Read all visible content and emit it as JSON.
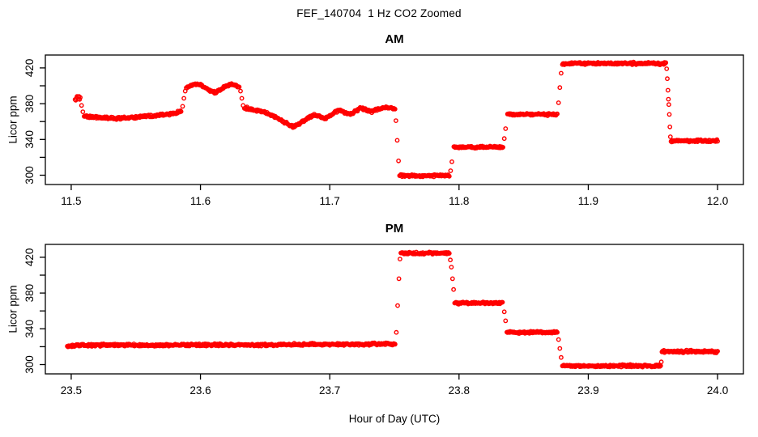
{
  "figure": {
    "title": "FEF_140704  1 Hz CO2 Zoomed",
    "xlabel": "Hour of Day (UTC)",
    "point_color": "#ff0000",
    "axis_color": "#000000",
    "background": "#ffffff"
  },
  "chart_data": [
    {
      "type": "scatter",
      "panel": "AM",
      "title": "AM",
      "ylabel": "Licor ppm",
      "marker": "open-circle",
      "grid": false,
      "legend": null,
      "xlim": [
        11.48,
        12.02
      ],
      "ylim": [
        289.6,
        434.4
      ],
      "xticks": [
        11.5,
        11.6,
        11.7,
        11.8,
        11.9,
        12.0
      ],
      "xtick_labels": [
        "11.5",
        "11.6",
        "11.7",
        "11.8",
        "11.9",
        "12.0"
      ],
      "yticks": [
        300,
        320,
        340,
        360,
        380,
        400,
        420
      ],
      "ytick_labels": [
        "300",
        "",
        "340",
        "",
        "380",
        "",
        "420"
      ],
      "sample_dt_hours": 0.0005,
      "segments": [
        {
          "kind": "flat",
          "t": [
            11.503,
            11.507
          ],
          "v": 386,
          "noise": 2.2
        },
        {
          "kind": "singles",
          "points": [
            [
              11.508,
              378
            ],
            [
              11.509,
              371
            ]
          ]
        },
        {
          "kind": "anchors",
          "noise": 1.2,
          "points": [
            [
              11.51,
              366
            ],
            [
              11.518,
              365
            ],
            [
              11.526,
              364
            ],
            [
              11.534,
              363.5
            ],
            [
              11.545,
              364
            ],
            [
              11.556,
              366
            ],
            [
              11.565,
              366.5
            ],
            [
              11.574,
              368
            ],
            [
              11.582,
              370
            ],
            [
              11.585,
              371.5
            ]
          ]
        },
        {
          "kind": "singles",
          "points": [
            [
              11.5862,
              377
            ],
            [
              11.5872,
              386
            ],
            [
              11.5882,
              394
            ]
          ]
        },
        {
          "kind": "anchors",
          "noise": 1.1,
          "points": [
            [
              11.589,
              397
            ],
            [
              11.592,
              400
            ],
            [
              11.596,
              402
            ],
            [
              11.6,
              401
            ],
            [
              11.603,
              398
            ],
            [
              11.607,
              395
            ],
            [
              11.611,
              392.5
            ],
            [
              11.615,
              395
            ],
            [
              11.619,
              399
            ],
            [
              11.623,
              401.5
            ],
            [
              11.627,
              401
            ],
            [
              11.63,
              398
            ]
          ]
        },
        {
          "kind": "singles",
          "points": [
            [
              11.631,
              394
            ],
            [
              11.632,
              386
            ],
            [
              11.633,
              378
            ]
          ]
        },
        {
          "kind": "anchors",
          "noise": 1.2,
          "points": [
            [
              11.634,
              375
            ],
            [
              11.64,
              373.5
            ],
            [
              11.646,
              372
            ],
            [
              11.652,
              369
            ],
            [
              11.658,
              365
            ],
            [
              11.663,
              361
            ],
            [
              11.668,
              357
            ],
            [
              11.6715,
              354
            ],
            [
              11.675,
              356
            ],
            [
              11.679,
              360
            ],
            [
              11.683,
              364
            ],
            [
              11.688,
              367
            ],
            [
              11.692,
              366
            ],
            [
              11.696,
              363
            ],
            [
              11.7,
              366
            ],
            [
              11.704,
              371
            ],
            [
              11.708,
              373
            ],
            [
              11.712,
              370
            ],
            [
              11.716,
              368
            ],
            [
              11.72,
              372
            ],
            [
              11.724,
              375
            ],
            [
              11.728,
              373
            ],
            [
              11.732,
              371
            ],
            [
              11.736,
              373
            ],
            [
              11.74,
              375
            ],
            [
              11.744,
              376
            ],
            [
              11.748,
              375
            ],
            [
              11.7505,
              374
            ]
          ]
        },
        {
          "kind": "singles",
          "points": [
            [
              11.7512,
              361
            ],
            [
              11.7522,
              339
            ],
            [
              11.7532,
              316
            ]
          ]
        },
        {
          "kind": "flat",
          "t": [
            11.754,
            11.7925
          ],
          "v": 299.5,
          "noise": 1.0
        },
        {
          "kind": "singles",
          "points": [
            [
              11.7935,
              305
            ],
            [
              11.7945,
              315
            ]
          ]
        },
        {
          "kind": "flat",
          "t": [
            11.796,
            11.834
          ],
          "v": 331.5,
          "noise": 1.0
        },
        {
          "kind": "singles",
          "points": [
            [
              11.835,
              341
            ],
            [
              11.836,
              352
            ]
          ]
        },
        {
          "kind": "flat",
          "t": [
            11.8375,
            11.876
          ],
          "v": 368,
          "noise": 1.0
        },
        {
          "kind": "singles",
          "points": [
            [
              11.877,
              381
            ],
            [
              11.878,
              398
            ],
            [
              11.879,
              414
            ]
          ]
        },
        {
          "kind": "flat",
          "t": [
            11.88,
            11.96
          ],
          "v": 425,
          "noise": 1.1
        },
        {
          "kind": "singles",
          "points": [
            [
              11.9606,
              419
            ],
            [
              11.9611,
              408
            ],
            [
              11.9616,
              395
            ],
            [
              11.962,
              385
            ],
            [
              11.9623,
              379
            ],
            [
              11.9627,
              368
            ],
            [
              11.9631,
              354
            ],
            [
              11.9635,
              343
            ]
          ]
        },
        {
          "kind": "flat",
          "t": [
            11.964,
            12.0
          ],
          "v": 338.5,
          "noise": 1.0
        }
      ]
    },
    {
      "type": "scatter",
      "panel": "PM",
      "title": "PM",
      "ylabel": "Licor ppm",
      "marker": "open-circle",
      "grid": false,
      "legend": null,
      "xlim": [
        23.48,
        24.02
      ],
      "ylim": [
        289.6,
        434.4
      ],
      "xticks": [
        23.5,
        23.6,
        23.7,
        23.8,
        23.9,
        24.0
      ],
      "xtick_labels": [
        "23.5",
        "23.6",
        "23.7",
        "23.8",
        "23.9",
        "24.0"
      ],
      "yticks": [
        300,
        320,
        340,
        360,
        380,
        400,
        420
      ],
      "ytick_labels": [
        "300",
        "",
        "340",
        "",
        "380",
        "",
        "420"
      ],
      "sample_dt_hours": 0.0005,
      "segments": [
        {
          "kind": "anchors",
          "noise": 1.1,
          "points": [
            [
              23.497,
              320.5
            ],
            [
              23.505,
              321.5
            ],
            [
              23.53,
              322
            ],
            [
              23.56,
              321.5
            ],
            [
              23.59,
              322
            ],
            [
              23.62,
              322
            ],
            [
              23.65,
              322
            ],
            [
              23.68,
              322.5
            ],
            [
              23.71,
              322.5
            ],
            [
              23.73,
              323
            ],
            [
              23.7505,
              323
            ]
          ]
        },
        {
          "kind": "singles",
          "points": [
            [
              23.7515,
              336
            ],
            [
              23.7525,
              366
            ],
            [
              23.7535,
              396
            ],
            [
              23.7543,
              418
            ]
          ]
        },
        {
          "kind": "flat",
          "t": [
            23.755,
            23.7925
          ],
          "v": 424.5,
          "noise": 1.1
        },
        {
          "kind": "singles",
          "points": [
            [
              23.7933,
              417
            ],
            [
              23.7941,
              409
            ],
            [
              23.795,
              396
            ],
            [
              23.7958,
              384
            ]
          ]
        },
        {
          "kind": "flat",
          "t": [
            23.7966,
            23.834
          ],
          "v": 369,
          "noise": 1.0
        },
        {
          "kind": "singles",
          "points": [
            [
              23.835,
              359
            ],
            [
              23.836,
              349
            ]
          ]
        },
        {
          "kind": "flat",
          "t": [
            23.837,
            23.876
          ],
          "v": 336,
          "noise": 1.0
        },
        {
          "kind": "singles",
          "points": [
            [
              23.877,
              328
            ],
            [
              23.878,
              318
            ],
            [
              23.879,
              308
            ]
          ]
        },
        {
          "kind": "flat",
          "t": [
            23.88,
            23.956
          ],
          "v": 298.5,
          "noise": 1.1
        },
        {
          "kind": "singles",
          "points": [
            [
              23.9565,
              303
            ]
          ]
        },
        {
          "kind": "flat",
          "t": [
            23.957,
            24.0
          ],
          "v": 314.5,
          "noise": 1.1
        }
      ]
    }
  ]
}
